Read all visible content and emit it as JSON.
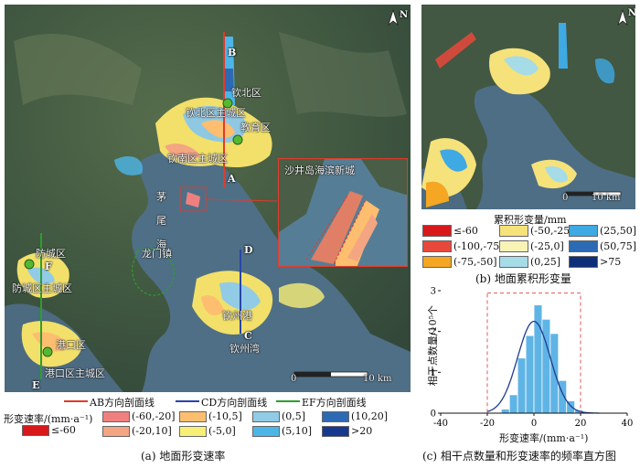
{
  "panel_a": {
    "caption": "(a) 地面形变速率",
    "north": "N",
    "scale_zero": "0",
    "scale_end": "10 km",
    "place_labels": {
      "qinbei": "钦北区",
      "qinbei_city": "钦北区主城区",
      "jiaoyu": "教育区",
      "qinnan_city": "钦南区主城区",
      "mao": "茅",
      "wei": "尾",
      "hai": "海",
      "longmen": "龙门镇",
      "fangcheng": "防城区",
      "fangcheng_city": "防城区主城区",
      "gangkou": "港口区",
      "gangkou_city": "港口区主城区",
      "qinzhou_port": "钦州港",
      "qinzhou_bay": "钦州湾",
      "inset_title": "沙井岛海滨新城"
    },
    "profile_points": {
      "A": "A",
      "B": "B",
      "C": "C",
      "D": "D",
      "E": "E",
      "F": "F"
    },
    "profile_legend": [
      "AB方向剖面线",
      "CD方向剖面线",
      "EF方向剖面线"
    ],
    "profile_colors": [
      "#e23b2a",
      "#2846a8",
      "#2e9e2e"
    ],
    "legend_title": "形变速率/(mm·a⁻¹)",
    "legend_items": [
      {
        "label": "≤-60",
        "color": "#d7191c"
      },
      {
        "label": "(-60,-20]",
        "color": "#f08080"
      },
      {
        "label": "(-20,10]",
        "color": "#f4a582"
      },
      {
        "label": "(-10,5]",
        "color": "#fdbe6f"
      },
      {
        "label": "(-5,0]",
        "color": "#f7ef77"
      },
      {
        "label": "(0,5]",
        "color": "#92cbe6"
      },
      {
        "label": "(5,10]",
        "color": "#4cb6e8"
      },
      {
        "label": "(10,20]",
        "color": "#2c6bb4"
      },
      {
        "label": ">20",
        "color": "#17388f"
      }
    ]
  },
  "panel_b": {
    "caption": "(b) 地面累积形变量",
    "north": "N",
    "scale_zero": "0",
    "scale_end": "10 km",
    "legend_title": "累积形变量/mm",
    "legend_items": [
      {
        "label": "≤-60",
        "color": "#d7191c"
      },
      {
        "label": "(-100,-75]",
        "color": "#e8483b"
      },
      {
        "label": "(-75,-50]",
        "color": "#f5a623"
      },
      {
        "label": "(-50,-25]",
        "color": "#f6e27a"
      },
      {
        "label": "(-25,0]",
        "color": "#f9f3b8"
      },
      {
        "label": "(0,25]",
        "color": "#a6dbe8"
      },
      {
        "label": "(25,50]",
        "color": "#3fa9e3"
      },
      {
        "label": "(50,75]",
        "color": "#2c6bb4"
      },
      {
        "label": ">75",
        "color": "#0d2f7a"
      }
    ]
  },
  "panel_c": {
    "caption": "(c) 相干点数量和形变速率的频率直方图",
    "chart_data": {
      "type": "bar",
      "xlabel": "形变速率/(mm·a⁻¹)",
      "ylabel": "相干点数量/10⁵个",
      "xlim": [
        -40,
        40
      ],
      "ylim": [
        0,
        3
      ],
      "xticks": [
        -40,
        -20,
        0,
        20,
        40
      ],
      "yticks": [
        0,
        1,
        2,
        3
      ],
      "bin_width": 3.5,
      "bin_starts": [
        -17.5,
        -14,
        -10.5,
        -7,
        -3.5,
        0,
        3.5,
        7,
        10.5,
        14,
        17.5,
        21
      ],
      "values": [
        0.02,
        0.1,
        0.45,
        1.35,
        1.9,
        2.65,
        2.3,
        1.95,
        0.8,
        0.3,
        0.08,
        0.03
      ],
      "normal_curve": {
        "mean": 0,
        "peak": 2.25,
        "sd": 7
      },
      "highlight_range": [
        -20,
        20
      ],
      "bar_color": "#5fb4e6",
      "curve_color": "#1f3a93",
      "highlight_color": "#e05a5a"
    }
  }
}
